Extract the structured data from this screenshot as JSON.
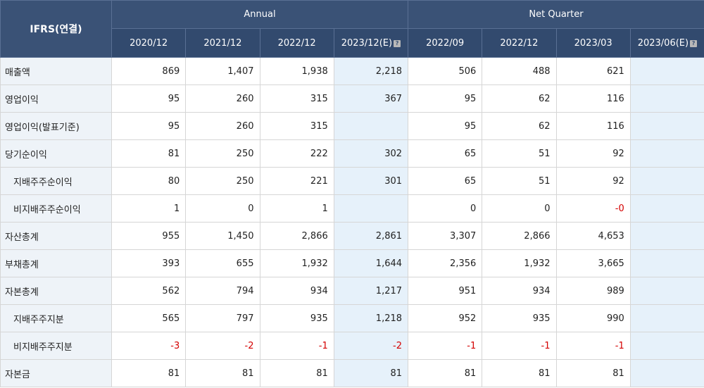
{
  "corner_label": "IFRS(연결)",
  "groups": {
    "annual": "Annual",
    "quarter": "Net Quarter"
  },
  "periods": [
    "2020/12",
    "2021/12",
    "2022/12",
    "2023/12(E)",
    "2022/09",
    "2022/12",
    "2023/03",
    "2023/06(E)"
  ],
  "estimate_columns": [
    3,
    7
  ],
  "hint_icon": "help-icon",
  "colors": {
    "header_bg": "#3a5276",
    "label_bg": "#eef3f8",
    "estimate_bg": "#e6f1fa",
    "negative": "#d40000"
  },
  "rows": [
    {
      "label": "매출액",
      "indent": false,
      "values": [
        "869",
        "1,407",
        "1,938",
        "2,218",
        "506",
        "488",
        "621",
        ""
      ]
    },
    {
      "label": "영업이익",
      "indent": false,
      "values": [
        "95",
        "260",
        "315",
        "367",
        "95",
        "62",
        "116",
        ""
      ]
    },
    {
      "label": "영업이익(발표기준)",
      "indent": false,
      "values": [
        "95",
        "260",
        "315",
        "",
        "95",
        "62",
        "116",
        ""
      ]
    },
    {
      "label": "당기순이익",
      "indent": false,
      "values": [
        "81",
        "250",
        "222",
        "302",
        "65",
        "51",
        "92",
        ""
      ]
    },
    {
      "label": "지배주주순이익",
      "indent": true,
      "values": [
        "80",
        "250",
        "221",
        "301",
        "65",
        "51",
        "92",
        ""
      ]
    },
    {
      "label": "비지배주주순이익",
      "indent": true,
      "values": [
        "1",
        "0",
        "1",
        "",
        "0",
        "0",
        "-0",
        ""
      ]
    },
    {
      "label": "자산총계",
      "indent": false,
      "values": [
        "955",
        "1,450",
        "2,866",
        "2,861",
        "3,307",
        "2,866",
        "4,653",
        ""
      ]
    },
    {
      "label": "부채총계",
      "indent": false,
      "values": [
        "393",
        "655",
        "1,932",
        "1,644",
        "2,356",
        "1,932",
        "3,665",
        ""
      ]
    },
    {
      "label": "자본총계",
      "indent": false,
      "values": [
        "562",
        "794",
        "934",
        "1,217",
        "951",
        "934",
        "989",
        ""
      ]
    },
    {
      "label": "지배주주지분",
      "indent": true,
      "values": [
        "565",
        "797",
        "935",
        "1,218",
        "952",
        "935",
        "990",
        ""
      ]
    },
    {
      "label": "비지배주주지분",
      "indent": true,
      "values": [
        "-3",
        "-2",
        "-1",
        "-2",
        "-1",
        "-1",
        "-1",
        ""
      ]
    },
    {
      "label": "자본금",
      "indent": false,
      "values": [
        "81",
        "81",
        "81",
        "81",
        "81",
        "81",
        "81",
        ""
      ]
    }
  ]
}
